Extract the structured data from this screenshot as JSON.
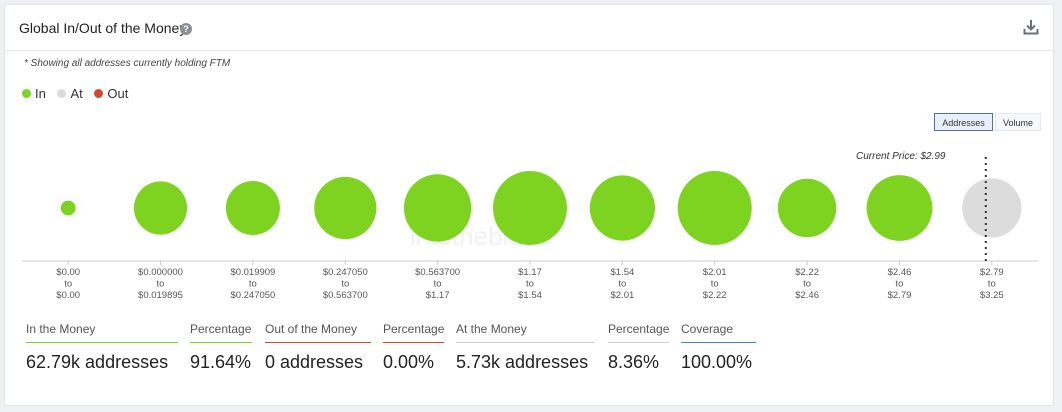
{
  "widget": {
    "title": "Global In/Out of the Money",
    "help_icon": "?",
    "note": "* Showing all addresses currently holding FTM"
  },
  "legend": [
    {
      "label": "In",
      "color": "#7ed321"
    },
    {
      "label": "At",
      "color": "#dcdcdc"
    },
    {
      "label": "Out",
      "color": "#d0482f"
    }
  ],
  "toggles": {
    "addresses": "Addresses",
    "volume": "Volume",
    "active": "addresses"
  },
  "current_price": "Current Price: $2.99",
  "watermark": "intotheblock",
  "chart_data": {
    "type": "bubble",
    "categories": [
      {
        "from": "$0.00",
        "sep": "to",
        "to": "$0.00"
      },
      {
        "from": "$0.000000",
        "sep": "to",
        "to": "$0.019895"
      },
      {
        "from": "$0.019909",
        "sep": "to",
        "to": "$0.247050"
      },
      {
        "from": "$0.247050",
        "sep": "to",
        "to": "$0.563700"
      },
      {
        "from": "$0.563700",
        "sep": "to",
        "to": "$1.17"
      },
      {
        "from": "$1.17",
        "sep": "to",
        "to": "$1.54"
      },
      {
        "from": "$1.54",
        "sep": "to",
        "to": "$2.01"
      },
      {
        "from": "$2.01",
        "sep": "to",
        "to": "$2.22"
      },
      {
        "from": "$2.22",
        "sep": "to",
        "to": "$2.46"
      },
      {
        "from": "$2.46",
        "sep": "to",
        "to": "$2.79"
      },
      {
        "from": "$2.79",
        "sep": "to",
        "to": "$3.25"
      }
    ],
    "relative_size": [
      0.2,
      0.72,
      0.73,
      0.84,
      0.91,
      1.0,
      0.88,
      1.0,
      0.79,
      0.89,
      0.8
    ],
    "status": [
      "in",
      "in",
      "in",
      "in",
      "in",
      "in",
      "in",
      "in",
      "in",
      "in",
      "at"
    ],
    "current_price_bucket": 10
  },
  "stats": [
    {
      "label": "In the Money",
      "value": "62.79k addresses",
      "color": "#7ed321"
    },
    {
      "label": "Percentage",
      "value": "91.64%",
      "color": "#7ed321"
    },
    {
      "label": "Out of the Money",
      "value": "0 addresses",
      "color": "#d0482f"
    },
    {
      "label": "Percentage",
      "value": "0.00%",
      "color": "#d0482f"
    },
    {
      "label": "At the Money",
      "value": "5.73k addresses",
      "color": "#cfcfcf"
    },
    {
      "label": "Percentage",
      "value": "8.36%",
      "color": "#cfcfcf"
    },
    {
      "label": "Coverage",
      "value": "100.00%",
      "color": "#4a7fd0"
    }
  ]
}
